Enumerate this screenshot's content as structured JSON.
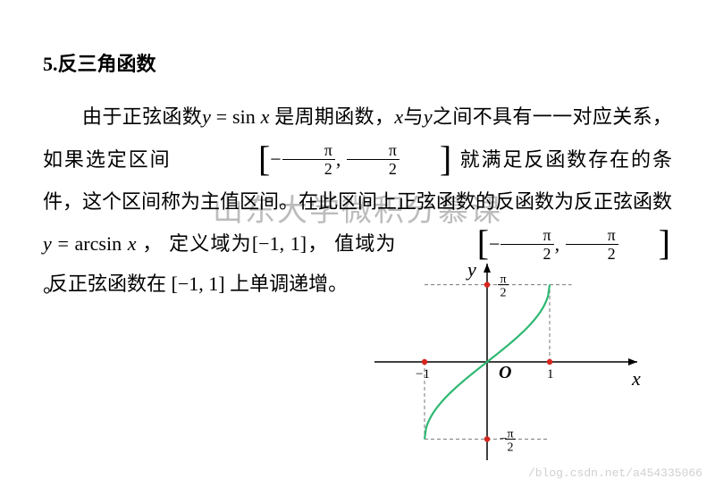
{
  "heading": {
    "num": "5.",
    "title": "反三角函数"
  },
  "body": {
    "t1": "由于正弦函数",
    "eq1_lhs_var": "y",
    "eq1_eq": " = ",
    "eq1_rhs_fn": "sin ",
    "eq1_rhs_var": "x",
    "t2": "  是周期函数，",
    "var_x": "x",
    "t3": "与",
    "var_y": "y",
    "t4": "之间不具有一一对应关系，  如果选定区间 ",
    "interval1": {
      "left": "[",
      "a_neg": "−",
      "a_num": "π",
      "a_den": "2",
      "comma": ", ",
      "b_num": "π",
      "b_den": "2",
      "right": "]"
    },
    "t5": " 就满足反函数存在的条件，这个区间称为主值区间。在此区间上正弦函数的反函数为反正弦函数",
    "eq2_lhs_var": "y",
    "eq2_eq": " = ",
    "eq2_rhs_fn": "arcsin ",
    "eq2_rhs_var": "x",
    "t6": " ，  定义域为",
    "domain": "[−1, 1]",
    "t7": "，  值域为",
    "t8": "。"
  },
  "last": {
    "t1": "反正弦函数在 ",
    "interval": "[−1, 1]",
    "t2": " 上单调递增。"
  },
  "watermark": "山东大学微积分慕课",
  "footer": "/blog.csdn.net/a454335066",
  "graph": {
    "axis_color": "#000000",
    "curve_color": "#2eb872",
    "dot_color": "#d7261e",
    "dash_color": "#777777",
    "bg": "#ffffff",
    "labels": {
      "x": "x",
      "y": "y",
      "origin": "O",
      "xm1": "−1",
      "xp1": "1",
      "ypos_num": "π",
      "ypos_den": "2",
      "yneg_prefix": "−",
      "yneg_num": "π",
      "yneg_den": "2"
    },
    "xrange": [
      -1.8,
      2.4
    ],
    "yrange": [
      -2.0,
      2.0
    ],
    "pi2": 1.5708
  }
}
